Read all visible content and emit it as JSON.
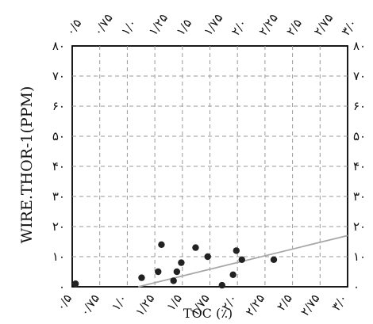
{
  "chart_data": {
    "type": "scatter",
    "title": "",
    "xlabel": "TOC (٪)",
    "ylabel": "WIRE.THOR-1(PPM)",
    "xlim": [
      0.5,
      3.0
    ],
    "ylim": [
      0,
      80
    ],
    "x_ticks": [
      0.5,
      0.75,
      1.0,
      1.25,
      1.5,
      1.75,
      2.0,
      2.25,
      2.5,
      2.75,
      3.0
    ],
    "x_tick_labels": [
      "۰/۵",
      "۰/۷۵",
      "۱/۰",
      "۱/۲۵",
      "۱/۵",
      "۱/۷۵",
      "۲/۰",
      "۲/۲۵",
      "۲/۵",
      "۲/۷۵",
      "۳/۰"
    ],
    "y_ticks": [
      0,
      10,
      20,
      30,
      40,
      50,
      60,
      70,
      80
    ],
    "y_tick_labels": [
      "۰",
      "۱۰",
      "۲۰",
      "۳۰",
      "۴۰",
      "۵۰",
      "۶۰",
      "۷۰",
      "۸۰"
    ],
    "grid": true,
    "points": [
      {
        "x": 0.53,
        "y": 1
      },
      {
        "x": 1.13,
        "y": 3
      },
      {
        "x": 1.28,
        "y": 5
      },
      {
        "x": 1.31,
        "y": 14
      },
      {
        "x": 1.42,
        "y": 2
      },
      {
        "x": 1.45,
        "y": 5
      },
      {
        "x": 1.49,
        "y": 8
      },
      {
        "x": 1.62,
        "y": 13
      },
      {
        "x": 1.73,
        "y": 10
      },
      {
        "x": 1.86,
        "y": 0.5
      },
      {
        "x": 1.96,
        "y": 4
      },
      {
        "x": 1.99,
        "y": 12
      },
      {
        "x": 2.04,
        "y": 9
      },
      {
        "x": 2.33,
        "y": 9
      }
    ],
    "trendline": {
      "x": [
        1.1,
        3.0
      ],
      "y": [
        0,
        17
      ]
    },
    "colors": {
      "points": "#222222",
      "trendline": "#a8a8a8",
      "grid": "#9a9a9a",
      "axis": "#000000"
    }
  }
}
